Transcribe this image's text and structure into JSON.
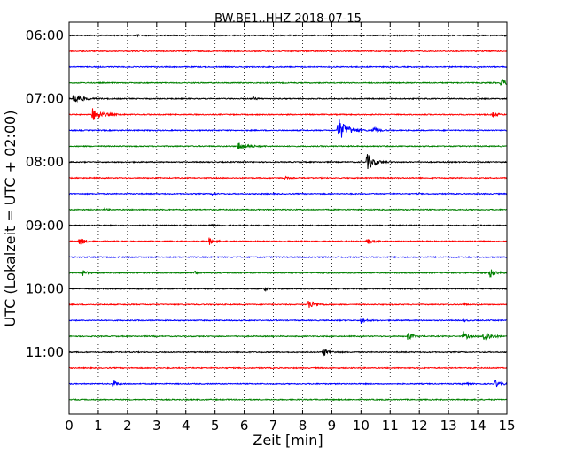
{
  "chart_data": {
    "type": "line",
    "title": "BW.BE1..HHZ 2018-07-15",
    "xlabel": "Zeit  [min]",
    "ylabel": "UTC (Lokalzeit = UTC + 02:00)",
    "xlim": [
      0,
      15
    ],
    "x_ticks": [
      0,
      1,
      2,
      3,
      4,
      5,
      6,
      7,
      8,
      9,
      10,
      11,
      12,
      13,
      14,
      15
    ],
    "y_tick_labels": [
      "06:00",
      "07:00",
      "08:00",
      "09:00",
      "10:00",
      "11:00"
    ],
    "grid": "vertical dotted at each minute",
    "trace_interval_min": 15,
    "colors": [
      "#000000",
      "#ff0000",
      "#0000ff",
      "#008000"
    ],
    "traces": [
      {
        "start": "06:00",
        "color": "#000000",
        "events": [
          {
            "t": 2.3,
            "amp": 0.15,
            "dur": 0.15
          },
          {
            "t": 14.95,
            "amp": 0.5,
            "dur": 0.1
          }
        ]
      },
      {
        "start": "06:15",
        "color": "#ff0000",
        "events": []
      },
      {
        "start": "06:30",
        "color": "#0000ff",
        "events": []
      },
      {
        "start": "06:45",
        "color": "#008000",
        "events": [
          {
            "t": 14.8,
            "amp": 0.6,
            "dur": 0.35
          }
        ]
      },
      {
        "start": "07:00",
        "color": "#000000",
        "events": [
          {
            "t": 0.15,
            "amp": 0.9,
            "dur": 0.5
          },
          {
            "t": 6.3,
            "amp": 0.25,
            "dur": 0.2
          }
        ]
      },
      {
        "start": "07:15",
        "color": "#ff0000",
        "events": [
          {
            "t": 0.8,
            "amp": 0.9,
            "dur": 0.6
          },
          {
            "t": 14.5,
            "amp": 0.4,
            "dur": 0.3
          }
        ]
      },
      {
        "start": "07:30",
        "color": "#0000ff",
        "events": [
          {
            "t": 9.2,
            "amp": 1.8,
            "dur": 0.6
          },
          {
            "t": 10.4,
            "amp": 0.5,
            "dur": 0.3
          }
        ]
      },
      {
        "start": "07:45",
        "color": "#008000",
        "events": [
          {
            "t": 5.8,
            "amp": 0.6,
            "dur": 0.6
          }
        ]
      },
      {
        "start": "08:00",
        "color": "#000000",
        "events": [
          {
            "t": 10.2,
            "amp": 1.2,
            "dur": 0.5
          }
        ]
      },
      {
        "start": "08:15",
        "color": "#ff0000",
        "events": [
          {
            "t": 7.4,
            "amp": 0.15,
            "dur": 0.2
          }
        ]
      },
      {
        "start": "08:30",
        "color": "#0000ff",
        "events": [
          {
            "t": 4.9,
            "amp": 0.15,
            "dur": 0.2
          }
        ]
      },
      {
        "start": "08:45",
        "color": "#008000",
        "events": [
          {
            "t": 1.2,
            "amp": 0.15,
            "dur": 0.2
          }
        ]
      },
      {
        "start": "09:00",
        "color": "#000000",
        "events": [
          {
            "t": 2.4,
            "amp": 0.25,
            "dur": 0.1
          },
          {
            "t": 4.8,
            "amp": 0.25,
            "dur": 0.15
          }
        ]
      },
      {
        "start": "09:15",
        "color": "#ff0000",
        "events": [
          {
            "t": 0.35,
            "amp": 0.6,
            "dur": 0.35
          },
          {
            "t": 4.8,
            "amp": 0.5,
            "dur": 0.3
          },
          {
            "t": 10.2,
            "amp": 0.45,
            "dur": 0.35
          }
        ]
      },
      {
        "start": "09:30",
        "color": "#0000ff",
        "events": []
      },
      {
        "start": "09:45",
        "color": "#008000",
        "events": [
          {
            "t": 0.4,
            "amp": 0.6,
            "dur": 0.3
          },
          {
            "t": 4.3,
            "amp": 0.25,
            "dur": 0.2
          },
          {
            "t": 14.4,
            "amp": 0.7,
            "dur": 0.4
          }
        ]
      },
      {
        "start": "10:00",
        "color": "#000000",
        "events": [
          {
            "t": 6.7,
            "amp": 0.25,
            "dur": 0.2
          }
        ]
      },
      {
        "start": "10:15",
        "color": "#ff0000",
        "events": [
          {
            "t": 8.2,
            "amp": 0.7,
            "dur": 0.45
          },
          {
            "t": 13.5,
            "amp": 0.2,
            "dur": 0.2
          }
        ]
      },
      {
        "start": "10:30",
        "color": "#0000ff",
        "events": [
          {
            "t": 10.0,
            "amp": 0.45,
            "dur": 0.3
          },
          {
            "t": 13.5,
            "amp": 0.2,
            "dur": 0.2
          }
        ]
      },
      {
        "start": "10:45",
        "color": "#008000",
        "events": [
          {
            "t": 11.6,
            "amp": 0.6,
            "dur": 0.3
          },
          {
            "t": 13.5,
            "amp": 0.7,
            "dur": 0.3
          },
          {
            "t": 14.2,
            "amp": 0.8,
            "dur": 0.45
          }
        ]
      },
      {
        "start": "11:00",
        "color": "#000000",
        "events": [
          {
            "t": 8.7,
            "amp": 0.6,
            "dur": 0.35
          }
        ]
      },
      {
        "start": "11:15",
        "color": "#ff0000",
        "events": []
      },
      {
        "start": "11:30",
        "color": "#0000ff",
        "events": [
          {
            "t": 1.5,
            "amp": 0.5,
            "dur": 0.25
          },
          {
            "t": 13.5,
            "amp": 0.25,
            "dur": 0.25
          },
          {
            "t": 14.6,
            "amp": 0.5,
            "dur": 0.35
          }
        ]
      },
      {
        "start": "11:45",
        "color": "#008000",
        "events": []
      }
    ]
  }
}
